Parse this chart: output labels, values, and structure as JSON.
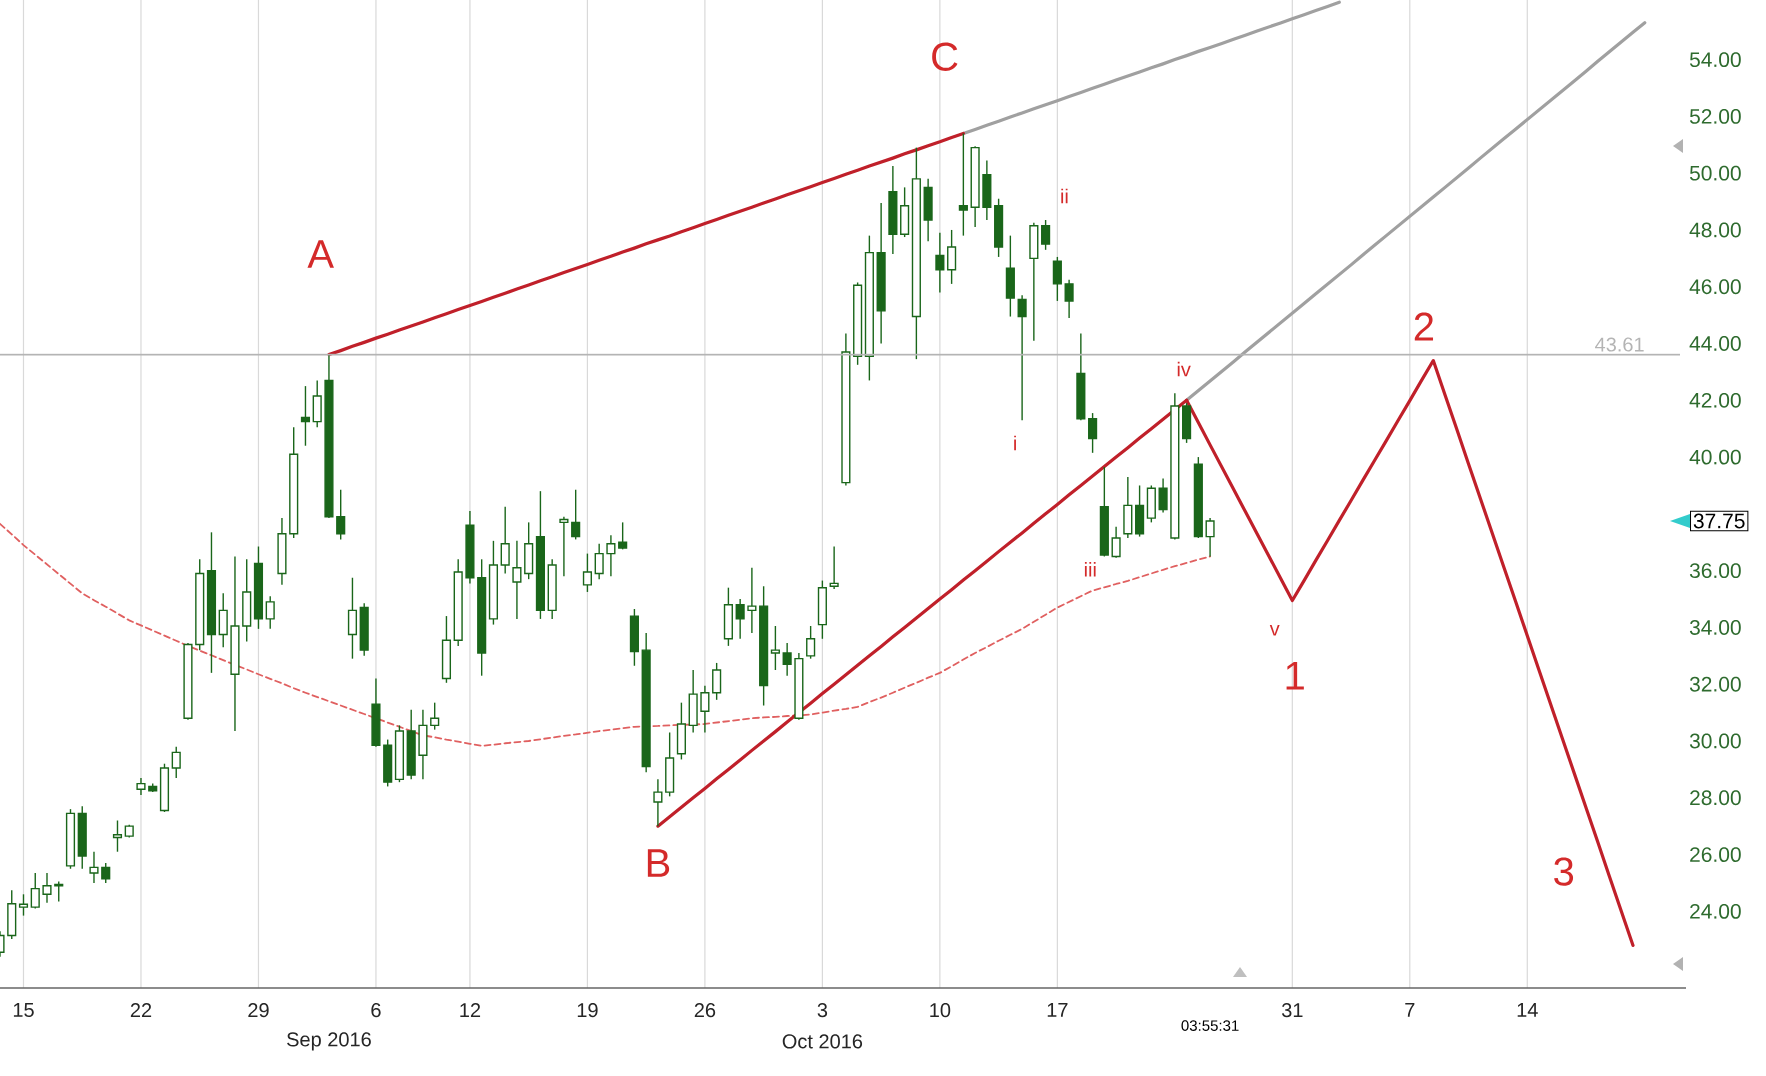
{
  "chart_data": {
    "type": "candlestick",
    "color": "#1a661a",
    "categories": [
      null,
      null,
      "15",
      null,
      null,
      null,
      null,
      null,
      null,
      null,
      null,
      null,
      "22",
      null,
      null,
      null,
      null,
      null,
      null,
      null,
      null,
      null,
      "29",
      null,
      null,
      null,
      null,
      null,
      null,
      null,
      null,
      null,
      "6",
      null,
      null,
      null,
      null,
      null,
      null,
      null,
      "12",
      null,
      null,
      null,
      null,
      null,
      null,
      null,
      null,
      null,
      "19",
      null,
      null,
      null,
      null,
      null,
      null,
      null,
      null,
      null,
      "26",
      null,
      null,
      null,
      null,
      null,
      null,
      null,
      null,
      null,
      "3",
      null,
      null,
      null,
      null,
      null,
      null,
      null,
      null,
      null,
      "10",
      null,
      null,
      null,
      null,
      null,
      null,
      null,
      null,
      null,
      "17",
      null,
      null,
      null,
      null,
      null,
      null,
      null,
      null,
      null,
      null,
      null,
      null,
      null,
      null,
      null,
      null,
      null,
      null,
      null,
      "31",
      null,
      null,
      null,
      null,
      null,
      null,
      null,
      null,
      null,
      "7",
      null,
      null,
      null,
      null,
      null,
      null,
      null,
      null,
      null,
      "14",
      null,
      null,
      null,
      null,
      null,
      null,
      null,
      null,
      null,
      null,
      null,
      null,
      null
    ],
    "ohlc": [
      [
        22.56,
        23.3,
        22.4,
        23.15
      ],
      [
        23.15,
        24.74,
        23.03,
        24.27
      ],
      [
        24.15,
        24.6,
        23.85,
        24.25
      ],
      [
        24.15,
        25.35,
        24.1,
        24.8
      ],
      [
        24.6,
        25.35,
        24.3,
        24.9
      ],
      [
        24.9,
        25.05,
        24.35,
        24.95
      ],
      [
        25.6,
        27.6,
        25.5,
        27.45
      ],
      [
        27.45,
        27.7,
        25.5,
        25.95
      ],
      [
        25.35,
        26.1,
        25.0,
        25.55
      ],
      [
        25.55,
        25.7,
        25.0,
        25.15
      ],
      [
        26.6,
        27.2,
        26.1,
        26.7
      ],
      [
        26.65,
        27.05,
        26.6,
        27.0
      ],
      [
        28.3,
        28.7,
        28.1,
        28.5
      ],
      [
        28.4,
        28.5,
        28.2,
        28.25
      ],
      [
        27.55,
        29.2,
        27.5,
        29.05
      ],
      [
        29.05,
        29.8,
        28.7,
        29.6
      ],
      [
        30.8,
        33.45,
        30.75,
        33.4
      ],
      [
        33.4,
        36.4,
        33.2,
        35.9
      ],
      [
        36.0,
        37.35,
        32.4,
        33.75
      ],
      [
        33.75,
        35.2,
        33.3,
        34.6
      ],
      [
        32.35,
        36.5,
        30.35,
        34.05
      ],
      [
        34.05,
        36.4,
        33.5,
        35.25
      ],
      [
        36.25,
        36.85,
        33.95,
        34.3
      ],
      [
        34.3,
        35.1,
        33.95,
        34.9
      ],
      [
        35.9,
        37.85,
        35.5,
        37.3
      ],
      [
        37.3,
        41.05,
        37.15,
        40.1
      ],
      [
        41.4,
        42.5,
        40.4,
        41.25
      ],
      [
        41.25,
        42.7,
        41.05,
        42.15
      ],
      [
        42.7,
        43.61,
        37.85,
        37.9
      ],
      [
        37.9,
        38.85,
        37.1,
        37.3
      ],
      [
        33.75,
        35.75,
        32.9,
        34.6
      ],
      [
        34.7,
        34.85,
        33.0,
        33.2
      ],
      [
        31.3,
        32.2,
        29.8,
        29.85
      ],
      [
        29.85,
        30.05,
        28.4,
        28.55
      ],
      [
        28.65,
        30.55,
        28.55,
        30.35
      ],
      [
        30.35,
        31.1,
        28.65,
        28.8
      ],
      [
        29.5,
        31.1,
        28.65,
        30.55
      ],
      [
        30.55,
        31.35,
        30.4,
        30.8
      ],
      [
        32.2,
        34.4,
        32.05,
        33.55
      ],
      [
        33.55,
        36.4,
        33.35,
        35.95
      ],
      [
        37.6,
        38.1,
        35.55,
        35.75
      ],
      [
        35.75,
        36.4,
        32.3,
        33.1
      ],
      [
        34.3,
        37.05,
        34.1,
        36.2
      ],
      [
        36.2,
        38.25,
        35.9,
        36.95
      ],
      [
        35.6,
        37.05,
        34.3,
        36.1
      ],
      [
        35.9,
        37.7,
        35.7,
        36.95
      ],
      [
        37.2,
        38.8,
        34.3,
        34.6
      ],
      [
        34.6,
        36.4,
        34.3,
        36.2
      ],
      [
        37.7,
        37.9,
        35.8,
        37.8
      ],
      [
        37.7,
        38.85,
        37.1,
        37.2
      ],
      [
        35.5,
        36.6,
        35.25,
        35.95
      ],
      [
        35.9,
        36.95,
        35.7,
        36.6
      ],
      [
        36.6,
        37.25,
        35.8,
        36.95
      ],
      [
        37.0,
        37.7,
        36.75,
        36.8
      ],
      [
        34.4,
        34.65,
        32.65,
        33.15
      ],
      [
        33.2,
        33.8,
        28.9,
        29.1
      ],
      [
        27.85,
        28.65,
        27.0,
        28.2
      ],
      [
        28.2,
        30.3,
        28.05,
        29.4
      ],
      [
        29.55,
        31.35,
        29.35,
        30.6
      ],
      [
        30.55,
        32.5,
        30.3,
        31.65
      ],
      [
        31.05,
        31.95,
        30.3,
        31.7
      ],
      [
        31.7,
        32.75,
        31.45,
        32.5
      ],
      [
        33.6,
        35.4,
        33.35,
        34.8
      ],
      [
        34.8,
        35.0,
        33.6,
        34.3
      ],
      [
        34.6,
        36.1,
        33.8,
        34.75
      ],
      [
        34.75,
        35.45,
        31.25,
        31.95
      ],
      [
        33.1,
        34.05,
        32.5,
        33.2
      ],
      [
        33.1,
        33.45,
        32.3,
        32.7
      ],
      [
        30.8,
        33.1,
        30.75,
        32.9
      ],
      [
        33.0,
        34.05,
        32.9,
        33.6
      ],
      [
        34.1,
        35.65,
        33.6,
        35.4
      ],
      [
        35.45,
        36.85,
        35.35,
        35.55
      ],
      [
        39.1,
        44.35,
        39.0,
        43.7
      ],
      [
        43.55,
        46.15,
        43.25,
        46.05
      ],
      [
        43.55,
        47.8,
        42.7,
        47.2
      ],
      [
        47.2,
        48.95,
        44.0,
        45.15
      ],
      [
        49.35,
        50.25,
        47.15,
        47.85
      ],
      [
        47.85,
        49.5,
        47.75,
        48.85
      ],
      [
        44.95,
        50.9,
        43.45,
        49.8
      ],
      [
        49.5,
        49.8,
        47.6,
        48.35
      ],
      [
        47.1,
        47.9,
        45.8,
        46.6
      ],
      [
        46.6,
        48.0,
        46.1,
        47.4
      ],
      [
        48.85,
        51.4,
        47.8,
        48.7
      ],
      [
        48.8,
        50.95,
        48.1,
        50.9
      ],
      [
        49.95,
        50.45,
        48.35,
        48.8
      ],
      [
        48.85,
        49.1,
        47.05,
        47.4
      ],
      [
        46.65,
        47.8,
        44.95,
        45.6
      ],
      [
        45.55,
        45.7,
        41.3,
        44.95
      ],
      [
        47.0,
        48.25,
        44.1,
        48.15
      ],
      [
        48.15,
        48.35,
        47.3,
        47.5
      ],
      [
        46.9,
        47.05,
        45.5,
        46.1
      ],
      [
        46.1,
        46.25,
        44.9,
        45.5
      ],
      [
        42.95,
        44.35,
        41.3,
        41.35
      ],
      [
        41.35,
        41.55,
        40.15,
        40.65
      ],
      [
        38.25,
        39.65,
        36.5,
        36.55
      ],
      [
        36.5,
        37.55,
        36.45,
        37.15
      ],
      [
        37.3,
        39.3,
        37.15,
        38.3
      ],
      [
        38.3,
        39.0,
        37.2,
        37.3
      ],
      [
        37.85,
        39.0,
        37.7,
        38.9
      ],
      [
        38.9,
        39.25,
        38.05,
        38.15
      ],
      [
        37.15,
        42.25,
        37.1,
        41.8
      ],
      [
        41.8,
        41.9,
        40.5,
        40.65
      ],
      [
        39.75,
        40.0,
        37.15,
        37.2
      ],
      [
        37.2,
        37.85,
        36.5,
        37.75
      ],
      null,
      null,
      null,
      null,
      null,
      null,
      null,
      null,
      null,
      null,
      null,
      null,
      null,
      null,
      null,
      null,
      null,
      null,
      null,
      null,
      null,
      null,
      null,
      null,
      null,
      null,
      null,
      null,
      null,
      null,
      null,
      null,
      null,
      null,
      null,
      null,
      null,
      null,
      null,
      null
    ],
    "ylim": [
      21.3,
      56.1
    ],
    "yticks": [
      {
        "value": 24,
        "label": "24.00"
      },
      {
        "value": 26,
        "label": "26.00"
      },
      {
        "value": 28,
        "label": "28.00"
      },
      {
        "value": 30,
        "label": "30.00"
      },
      {
        "value": 32,
        "label": "32.00"
      },
      {
        "value": 34,
        "label": "34.00"
      },
      {
        "value": 36,
        "label": "36.00"
      },
      {
        "value": 40,
        "label": "40.00"
      },
      {
        "value": 42,
        "label": "42.00"
      },
      {
        "value": 44,
        "label": "44.00"
      },
      {
        "value": 46,
        "label": "46.00"
      },
      {
        "value": 48,
        "label": "48.00"
      },
      {
        "value": 50,
        "label": "50.00"
      },
      {
        "value": 52,
        "label": "52.00"
      },
      {
        "value": 54,
        "label": "54.00"
      }
    ],
    "grid": "x",
    "series": [
      {
        "type": "line",
        "color": "#e06060",
        "line_style": "dashed",
        "values": [
          37.65,
          37.28,
          36.9,
          36.56,
          36.22,
          35.88,
          35.54,
          35.2,
          34.96,
          34.73,
          34.49,
          34.25,
          34.07,
          33.89,
          33.71,
          33.53,
          33.35,
          33.18,
          33.02,
          32.85,
          32.68,
          32.52,
          32.35,
          32.19,
          32.03,
          31.86,
          31.7,
          31.55,
          31.4,
          31.25,
          31.1,
          30.95,
          30.8,
          30.65,
          30.5,
          30.35,
          30.2,
          30.13,
          30.05,
          29.98,
          29.9,
          29.83,
          29.87,
          29.92,
          29.96,
          30.0,
          30.06,
          30.12,
          30.18,
          30.23,
          30.29,
          30.35,
          30.4,
          30.45,
          30.5,
          30.52,
          30.53,
          30.55,
          30.57,
          30.58,
          30.6,
          30.65,
          30.7,
          30.75,
          30.8,
          30.83,
          30.85,
          30.88,
          30.9,
          30.93,
          31.0,
          31.07,
          31.13,
          31.2,
          31.37,
          31.53,
          31.7,
          31.88,
          32.05,
          32.23,
          32.4,
          32.63,
          32.87,
          33.1,
          33.31,
          33.53,
          33.74,
          33.95,
          34.2,
          34.45,
          34.7,
          34.9,
          35.1,
          35.3,
          35.41,
          35.53,
          35.64,
          35.77,
          35.9,
          36.03,
          36.16,
          36.27,
          36.39,
          36.5,
          null,
          null,
          null,
          null,
          null,
          null,
          null,
          null,
          null,
          null,
          null,
          null,
          null,
          null,
          null,
          null,
          null,
          null,
          null,
          null,
          null,
          null,
          null,
          null,
          null,
          null,
          null,
          null,
          null,
          null,
          null,
          null,
          null,
          null,
          null,
          null,
          null,
          null,
          null,
          null
        ]
      },
      {
        "type": "line",
        "color": "#a0a0a0",
        "values": [
          null,
          null,
          null,
          null,
          null,
          null,
          null,
          null,
          null,
          null,
          null,
          null,
          null,
          null,
          null,
          null,
          null,
          null,
          null,
          null,
          null,
          null,
          null,
          null,
          null,
          null,
          null,
          null,
          null,
          null,
          null,
          null,
          null,
          null,
          null,
          null,
          null,
          null,
          null,
          null,
          null,
          null,
          null,
          null,
          null,
          null,
          null,
          null,
          null,
          null,
          null,
          null,
          null,
          null,
          null,
          null,
          null,
          null,
          null,
          null,
          null,
          null,
          null,
          null,
          null,
          null,
          null,
          null,
          null,
          null,
          null,
          null,
          null,
          null,
          null,
          null,
          null,
          null,
          null,
          null,
          null,
          null,
          51.4,
          51.54,
          51.69,
          51.83,
          51.98,
          52.12,
          52.27,
          52.41,
          52.55,
          52.7,
          52.84,
          52.99,
          53.13,
          53.28,
          53.42,
          53.56,
          53.71,
          53.85,
          54.0,
          54.14,
          54.29,
          54.43,
          54.57,
          54.72,
          54.86,
          55.01,
          55.15,
          55.29,
          55.44,
          55.58,
          55.73,
          55.87,
          56.02,
          null,
          null,
          null,
          null,
          null,
          null,
          null,
          null,
          null,
          null,
          null,
          null,
          null,
          null,
          null,
          null,
          null,
          null,
          null,
          null,
          null,
          null,
          null,
          null,
          null,
          null,
          null,
          null,
          null
        ]
      },
      {
        "type": "line",
        "color": "#a0a0a0",
        "values": [
          null,
          null,
          null,
          null,
          null,
          null,
          null,
          null,
          null,
          null,
          null,
          null,
          null,
          null,
          null,
          null,
          null,
          null,
          null,
          null,
          null,
          null,
          null,
          null,
          null,
          null,
          null,
          null,
          null,
          null,
          null,
          null,
          null,
          null,
          null,
          null,
          null,
          null,
          null,
          null,
          null,
          null,
          null,
          null,
          null,
          null,
          null,
          null,
          null,
          null,
          null,
          null,
          null,
          null,
          null,
          null,
          null,
          null,
          null,
          null,
          null,
          null,
          null,
          null,
          null,
          null,
          null,
          null,
          null,
          null,
          null,
          null,
          null,
          null,
          null,
          null,
          null,
          null,
          null,
          null,
          null,
          null,
          null,
          null,
          null,
          null,
          null,
          null,
          null,
          null,
          null,
          null,
          null,
          null,
          null,
          null,
          null,
          null,
          null,
          null,
          null,
          42.0,
          42.34,
          42.68,
          43.02,
          43.36,
          43.71,
          44.05,
          44.39,
          44.73,
          45.07,
          45.41,
          45.75,
          46.09,
          46.43,
          46.77,
          47.12,
          47.46,
          47.8,
          48.14,
          48.48,
          48.82,
          49.16,
          49.5,
          49.84,
          50.18,
          50.53,
          50.87,
          51.21,
          51.55,
          51.89,
          52.23,
          52.57,
          52.91,
          53.25,
          53.59,
          53.94,
          54.28,
          54.62,
          54.96,
          55.3,
          null,
          null,
          null
        ]
      },
      {
        "type": "line",
        "color": "#c0202a",
        "values": [
          null,
          null,
          null,
          null,
          null,
          null,
          null,
          null,
          null,
          null,
          null,
          null,
          null,
          null,
          null,
          null,
          null,
          null,
          null,
          null,
          null,
          null,
          null,
          null,
          null,
          null,
          null,
          null,
          43.61,
          43.75,
          43.9,
          44.04,
          44.19,
          44.33,
          44.48,
          44.62,
          44.76,
          44.91,
          45.05,
          45.2,
          45.34,
          45.48,
          45.63,
          45.77,
          45.92,
          46.06,
          46.21,
          46.35,
          46.5,
          46.64,
          46.78,
          46.93,
          47.07,
          47.22,
          47.36,
          47.51,
          47.65,
          47.79,
          47.94,
          48.08,
          48.23,
          48.37,
          48.52,
          48.66,
          48.8,
          48.95,
          49.09,
          49.24,
          49.38,
          49.52,
          49.67,
          49.81,
          49.96,
          50.1,
          50.25,
          50.39,
          50.53,
          50.68,
          50.82,
          50.97,
          51.11,
          51.26,
          51.4,
          null,
          null,
          null,
          null,
          null,
          null,
          null,
          null,
          null,
          null,
          null,
          null,
          null,
          null,
          null,
          null,
          null,
          null,
          null,
          null,
          null,
          null,
          null,
          null,
          null,
          null,
          null,
          null,
          null,
          null,
          null,
          null,
          null,
          null,
          null,
          null,
          null,
          null,
          null,
          null,
          null,
          null,
          null,
          null,
          null,
          null,
          null,
          null,
          null,
          null,
          null,
          null,
          null,
          null,
          null,
          null,
          null,
          null,
          null,
          null,
          null
        ]
      },
      {
        "type": "line",
        "color": "#c0202a",
        "values": [
          null,
          null,
          null,
          null,
          null,
          null,
          null,
          null,
          null,
          null,
          null,
          null,
          null,
          null,
          null,
          null,
          null,
          null,
          null,
          null,
          null,
          null,
          null,
          null,
          null,
          null,
          null,
          null,
          null,
          null,
          null,
          null,
          null,
          null,
          null,
          null,
          null,
          null,
          null,
          null,
          null,
          null,
          null,
          null,
          null,
          null,
          null,
          null,
          null,
          null,
          null,
          null,
          null,
          null,
          null,
          null,
          27.0,
          27.33,
          27.67,
          28.0,
          28.33,
          28.67,
          29.0,
          29.33,
          29.67,
          30.0,
          30.33,
          30.67,
          31.0,
          31.33,
          31.67,
          32.0,
          32.33,
          32.67,
          33.0,
          33.33,
          33.67,
          34.0,
          34.33,
          34.67,
          35.0,
          35.33,
          35.67,
          36.0,
          36.33,
          36.67,
          37.0,
          37.33,
          37.67,
          38.0,
          38.33,
          38.67,
          39.0,
          39.33,
          39.67,
          40.0,
          40.33,
          40.67,
          41.0,
          41.33,
          41.67,
          42.0,
          null,
          null,
          null,
          null,
          null,
          null,
          null,
          null,
          null,
          null,
          null,
          null,
          null,
          null,
          null,
          null,
          null,
          null,
          null,
          null,
          null,
          null,
          null,
          null,
          null,
          null,
          null,
          null,
          null,
          null,
          null,
          null,
          null,
          null,
          null,
          null,
          null,
          null,
          null,
          null,
          null,
          null
        ]
      },
      {
        "type": "line",
        "color": "#c0202a",
        "values": [
          null,
          null,
          null,
          null,
          null,
          null,
          null,
          null,
          null,
          null,
          null,
          null,
          null,
          null,
          null,
          null,
          null,
          null,
          null,
          null,
          null,
          null,
          null,
          null,
          null,
          null,
          null,
          null,
          null,
          null,
          null,
          null,
          null,
          null,
          null,
          null,
          null,
          null,
          null,
          null,
          null,
          null,
          null,
          null,
          null,
          null,
          null,
          null,
          null,
          null,
          null,
          null,
          null,
          null,
          null,
          null,
          null,
          null,
          null,
          null,
          null,
          null,
          null,
          null,
          null,
          null,
          null,
          null,
          null,
          null,
          null,
          null,
          null,
          null,
          null,
          null,
          null,
          null,
          null,
          null,
          null,
          null,
          null,
          null,
          null,
          null,
          null,
          null,
          null,
          null,
          null,
          null,
          null,
          null,
          null,
          null,
          null,
          null,
          null,
          null,
          null,
          42.0,
          41.22,
          40.43,
          39.65,
          38.87,
          38.08,
          37.3,
          36.52,
          35.73,
          34.95,
          35.65,
          36.36,
          37.06,
          37.77,
          38.47,
          39.18,
          39.88,
          40.58,
          41.29,
          41.99,
          42.7,
          43.4,
          42.19,
          40.98,
          39.76,
          38.55,
          37.34,
          36.13,
          34.92,
          33.71,
          32.49,
          31.28,
          30.07,
          28.86,
          27.65,
          26.44,
          25.22,
          24.01,
          22.8,
          null,
          null,
          null,
          null
        ]
      }
    ],
    "ref_lines": [
      {
        "axis": "y",
        "value": 43.61,
        "label": "43.61",
        "color": "#b4b4b4"
      }
    ],
    "annotations": [
      "A",
      "B",
      "C",
      "1",
      "2",
      "3",
      "i",
      "ii",
      "iii",
      "iv",
      "v",
      "Sep 2016",
      "Oct 2016",
      "03:55:31",
      "37.75"
    ]
  }
}
